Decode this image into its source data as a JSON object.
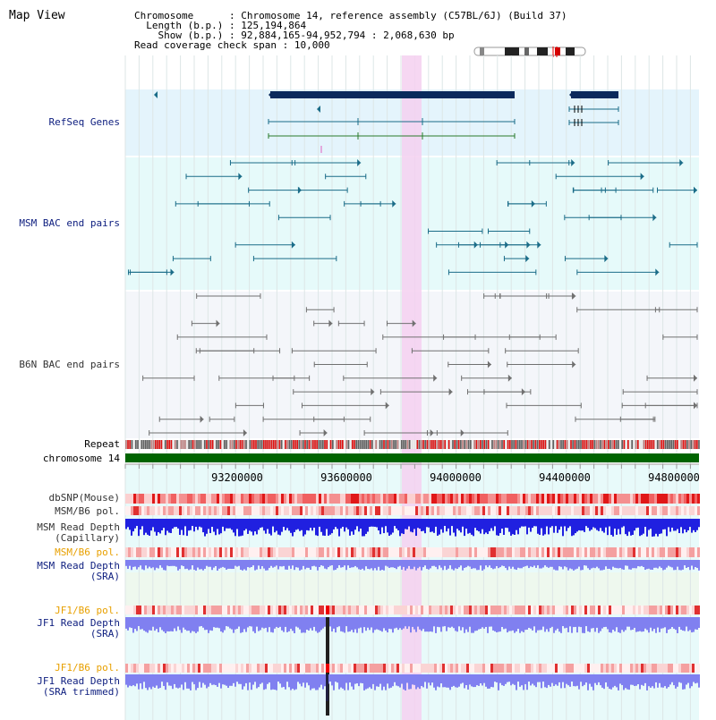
{
  "title": "Map View",
  "info": {
    "chromosome_label": "Chromosome",
    "chromosome_value": "Chromosome 14, reference assembly (C57BL/6J) (Build 37)",
    "length_label": "Length (b.p.)",
    "length_value": "125,194,864",
    "show_label": "Show (b.p.)",
    "show_value": "92,884,165-94,952,794 : 2,068,630 bp",
    "span_label": "Read coverage check span",
    "span_value": "10,000"
  },
  "tracks": {
    "refseq": "RefSeq Genes",
    "msm_bac": "MSM BAC end pairs",
    "b6n_bac": "B6N BAC end pairs",
    "repeat": "Repeat",
    "chromosome": "chromosome 14",
    "dbsnp": "dbSNP(Mouse)",
    "msm_b6_pol_1": "MSM/B6 pol.",
    "msm_depth_cap_1": "MSM Read Depth",
    "msm_depth_cap_2": "(Capillary)",
    "msm_b6_pol_2": "MSM/B6 pol.",
    "msm_depth_sra_1": "MSM Read Depth",
    "msm_depth_sra_2": "(SRA)",
    "jf1_b6_pol_1": "JF1/B6 pol.",
    "jf1_depth_sra_1": "JF1 Read Depth",
    "jf1_depth_sra_2": "(SRA)",
    "jf1_b6_pol_2": "JF1/B6 pol.",
    "jf1_depth_trim_1": "JF1 Read Depth",
    "jf1_depth_trim_2": "(SRA trimmed)"
  },
  "axis": {
    "ticks": [
      "93200000",
      "93600000",
      "94000000",
      "94400000",
      "94800000"
    ]
  },
  "colors": {
    "refseq_bg": "#e4f4fc",
    "msm_bg": "#e6fafa",
    "b6n_bg": "#f4f6fa",
    "highlight": "#f5d0f0",
    "gene": "#0a2a5c",
    "msm_pair": "#1a6c88",
    "b6n_pair": "#707070",
    "chrom_bar": "#006400",
    "depth_blue": "#2020e0",
    "depth_light": "#8080f0"
  }
}
